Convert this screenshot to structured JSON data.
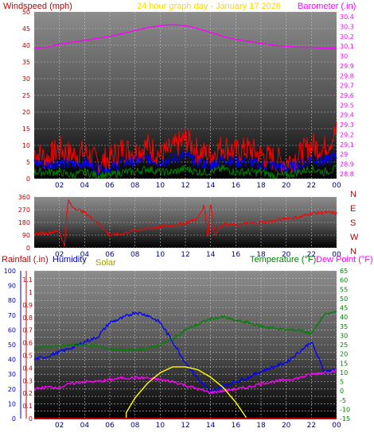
{
  "header": {
    "windspeed": "Windspeed (mph)",
    "title": "24 hour graph day - January 17 2026",
    "barometer": "Barometer (.in)",
    "rainfall": "Rainfall (.in)",
    "humidity": "Humidity",
    "solar": "Solar",
    "temperature": "Temperature (°F)",
    "dewpoint": "Dew Point (°F)"
  },
  "colors": {
    "wind_gust": "#ff0000",
    "wind_avg": "#0000ff",
    "wind_low": "#008000",
    "barometer": "#ff00ff",
    "direction": "#ff0000",
    "humidity": "#0000ff",
    "temperature": "#008000",
    "dewpoint": "#ff00ff",
    "solar": "#ffff00",
    "rain": "#c00000",
    "grid": "#c0c0c0"
  },
  "chart_data": [
    {
      "id": "wind",
      "type": "line",
      "x_ticks": [
        "02",
        "04",
        "06",
        "08",
        "10",
        "12",
        "14",
        "16",
        "18",
        "20",
        "22",
        "00"
      ],
      "y_left_ticks": [
        "0",
        "5",
        "10",
        "15",
        "20",
        "25",
        "30",
        "35",
        "40",
        "45",
        "50"
      ],
      "y_right_ticks": [
        "28.8",
        "28.9",
        "29",
        "29.1",
        "29.2",
        "29.3",
        "29.4",
        "29.5",
        "29.6",
        "29.7",
        "29.8",
        "29.9",
        "30",
        "30.1",
        "30.2",
        "30.3",
        "30.4"
      ],
      "ylim_left": [
        0,
        50
      ],
      "ylim_right": [
        28.75,
        30.45
      ],
      "xlim": [
        0,
        24
      ],
      "series": [
        {
          "name": "gust",
          "x": [
            0,
            1,
            2,
            3,
            4,
            5,
            6,
            7,
            8,
            9,
            10,
            11,
            12,
            13,
            14,
            15,
            16,
            17,
            18,
            19,
            20,
            21,
            22,
            23,
            24
          ],
          "values": [
            8,
            6,
            9,
            7,
            8,
            5,
            6,
            9,
            8,
            10,
            7,
            9,
            12,
            8,
            7,
            10,
            8,
            9,
            7,
            6,
            5,
            7,
            10,
            9,
            14
          ]
        },
        {
          "name": "average",
          "x": [
            0,
            1,
            2,
            3,
            4,
            5,
            6,
            7,
            8,
            9,
            10,
            11,
            12,
            13,
            14,
            15,
            16,
            17,
            18,
            19,
            20,
            21,
            22,
            23,
            24
          ],
          "values": [
            5,
            4,
            5,
            4,
            5,
            3,
            3,
            5,
            5,
            6,
            5,
            6,
            7,
            5,
            4,
            6,
            5,
            5,
            4,
            4,
            3,
            4,
            6,
            5,
            7
          ]
        },
        {
          "name": "low",
          "x": [
            0,
            1,
            2,
            3,
            4,
            5,
            6,
            7,
            8,
            9,
            10,
            11,
            12,
            13,
            14,
            15,
            16,
            17,
            18,
            19,
            20,
            21,
            22,
            23,
            24
          ],
          "values": [
            2,
            2,
            2,
            1,
            2,
            1,
            1,
            2,
            2,
            3,
            2,
            2,
            3,
            2,
            2,
            3,
            2,
            2,
            2,
            1,
            1,
            2,
            3,
            2,
            3
          ]
        },
        {
          "name": "barometer",
          "axis": "right",
          "x": [
            0,
            1,
            2,
            3,
            4,
            5,
            6,
            7,
            8,
            9,
            10,
            11,
            12,
            13,
            14,
            15,
            16,
            17,
            18,
            19,
            20,
            21,
            22,
            23,
            24
          ],
          "values": [
            30.08,
            30.09,
            30.12,
            30.14,
            30.16,
            30.18,
            30.2,
            30.23,
            30.26,
            30.29,
            30.31,
            30.32,
            30.31,
            30.28,
            30.24,
            30.2,
            30.17,
            30.15,
            30.13,
            30.11,
            30.1,
            30.09,
            30.09,
            30.08,
            30.08
          ]
        }
      ]
    },
    {
      "id": "direction",
      "type": "line",
      "x_ticks": [
        "02",
        "04",
        "06",
        "08",
        "10",
        "12",
        "14",
        "16",
        "18",
        "20",
        "22",
        "00"
      ],
      "y_left_ticks": [
        "0",
        "90",
        "180",
        "270",
        "360"
      ],
      "y_right_ticks": [
        "N",
        "W",
        "S",
        "E",
        "N"
      ],
      "ylim": [
        0,
        360
      ],
      "xlim": [
        0,
        24
      ],
      "series": [
        {
          "name": "direction",
          "x": [
            0,
            1,
            2,
            2.4,
            2.7,
            3,
            4,
            5,
            6,
            7,
            8,
            9,
            10,
            11,
            12,
            13,
            13.5,
            13.8,
            14,
            14.3,
            15,
            16,
            17,
            18,
            19,
            20,
            21,
            22,
            23,
            24
          ],
          "values": [
            100,
            105,
            120,
            10,
            340,
            290,
            250,
            180,
            90,
            100,
            125,
            135,
            150,
            160,
            175,
            210,
            300,
            60,
            330,
            90,
            170,
            160,
            175,
            180,
            190,
            210,
            215,
            245,
            250,
            245
          ]
        }
      ]
    },
    {
      "id": "atmosphere",
      "type": "line",
      "x_ticks": [
        "02",
        "04",
        "06",
        "08",
        "10",
        "12",
        "14",
        "16",
        "18",
        "20",
        "22",
        "00"
      ],
      "y_humidity_ticks": [
        "0",
        "10",
        "20",
        "30",
        "40",
        "50",
        "60",
        "70",
        "80",
        "90",
        "100"
      ],
      "y_rain_ticks": [
        "0",
        "0.1",
        "0.2",
        "0.3",
        "0.4",
        "0.5",
        "0.6",
        "0.7",
        "0.8",
        "0.9",
        "1",
        "1.1"
      ],
      "y_temp_ticks": [
        "-15",
        "-10",
        "-5",
        "0",
        "5",
        "10",
        "15",
        "20",
        "25",
        "30",
        "35",
        "40",
        "45",
        "50",
        "55",
        "60",
        "65"
      ],
      "ylim_humidity": [
        0,
        100
      ],
      "ylim_temp": [
        -15,
        65
      ],
      "xlim": [
        0,
        24
      ],
      "series": [
        {
          "name": "humidity",
          "axis": "humidity",
          "x": [
            0,
            1,
            2,
            3,
            4,
            5,
            6,
            7,
            8,
            9,
            10,
            11,
            12,
            13,
            14,
            15,
            16,
            17,
            18,
            19,
            20,
            21,
            22,
            23,
            24
          ],
          "values": [
            40,
            42,
            45,
            48,
            52,
            55,
            65,
            68,
            72,
            70,
            65,
            52,
            38,
            27,
            18,
            22,
            25,
            28,
            32,
            35,
            38,
            45,
            52,
            32,
            33
          ]
        },
        {
          "name": "temperature",
          "axis": "temp",
          "x": [
            0,
            1,
            2,
            3,
            4,
            5,
            6,
            7,
            8,
            9,
            10,
            11,
            12,
            13,
            14,
            15,
            16,
            17,
            18,
            19,
            20,
            21,
            22,
            23,
            24
          ],
          "values": [
            23,
            24,
            24,
            25,
            25,
            24,
            23,
            22,
            22,
            23,
            25,
            28,
            33,
            36,
            39,
            40,
            38,
            37,
            35,
            34,
            33,
            33,
            31,
            41,
            43
          ]
        },
        {
          "name": "dew point",
          "axis": "temp",
          "x": [
            0,
            1,
            2,
            3,
            4,
            5,
            6,
            7,
            8,
            9,
            10,
            11,
            12,
            13,
            14,
            15,
            16,
            17,
            18,
            19,
            20,
            21,
            22,
            23,
            24
          ],
          "values": [
            1,
            2,
            2,
            4,
            5,
            5,
            6,
            7,
            7,
            7,
            6,
            5,
            3,
            1,
            -1,
            0,
            1,
            2,
            4,
            5,
            6,
            7,
            9,
            10,
            11
          ]
        },
        {
          "name": "solar",
          "axis": "humidity",
          "x": [
            0,
            7.3,
            7.3,
            8,
            9,
            10,
            11,
            12,
            13,
            14,
            15,
            16,
            16.8,
            16.8,
            24
          ],
          "values": [
            0,
            0,
            4,
            14,
            24,
            31,
            35,
            35,
            33,
            28,
            21,
            11,
            1,
            0,
            0
          ]
        },
        {
          "name": "rain",
          "axis": "rain",
          "x": [
            0,
            24
          ],
          "values": [
            0,
            0
          ]
        }
      ]
    }
  ]
}
